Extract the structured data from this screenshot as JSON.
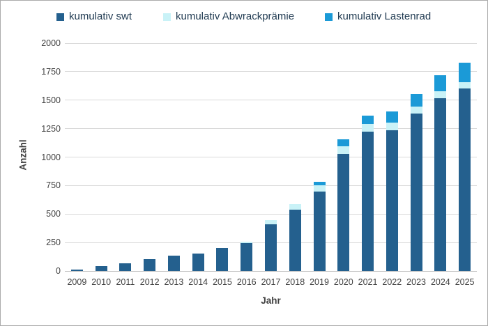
{
  "chart_data": {
    "type": "bar",
    "stacked": true,
    "title": "",
    "xlabel": "Jahr",
    "ylabel": "Anzahl",
    "ylim": [
      0,
      2000
    ],
    "ytick_step": 250,
    "ytick_labels": [
      "0",
      "250",
      "500",
      "750",
      "1000",
      "1250",
      "1500",
      "1750",
      "2000"
    ],
    "grid": true,
    "legend_position": "top",
    "categories": [
      "2009",
      "2010",
      "2011",
      "2012",
      "2013",
      "2014",
      "2015",
      "2016",
      "2017",
      "2018",
      "2019",
      "2020",
      "2021",
      "2022",
      "2023",
      "2024",
      "2025"
    ],
    "series": [
      {
        "name": "kumulativ swt",
        "color": "#24608e",
        "values": [
          10,
          40,
          70,
          105,
          135,
          155,
          200,
          245,
          410,
          540,
          695,
          1030,
          1225,
          1235,
          1385,
          1515,
          1600
        ]
      },
      {
        "name": "kumulativ Abwrackprämie",
        "color": "#c9f2f7",
        "values": [
          0,
          0,
          0,
          0,
          0,
          0,
          0,
          10,
          35,
          45,
          55,
          65,
          65,
          70,
          60,
          65,
          60
        ]
      },
      {
        "name": "kumulativ Lastenrad",
        "color": "#1b9ad7",
        "values": [
          0,
          0,
          0,
          0,
          0,
          0,
          0,
          0,
          0,
          0,
          30,
          60,
          75,
          95,
          110,
          140,
          170
        ]
      }
    ],
    "totals": [
      10,
      40,
      70,
      105,
      135,
      155,
      200,
      255,
      445,
      585,
      780,
      1155,
      1365,
      1400,
      1555,
      1720,
      1830
    ]
  },
  "colors": {
    "background": "#ffffff",
    "border": "#ababab",
    "gridline": "#d9d9d9",
    "axis_line": "#bfbfbf",
    "tick_text": "#404040",
    "legend_text": "#223c53"
  }
}
